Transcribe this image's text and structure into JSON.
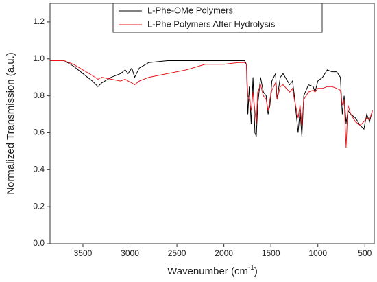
{
  "chart_data": {
    "type": "line",
    "xlabel_parts": [
      "Wavenumber (cm",
      "-1",
      ")"
    ],
    "ylabel": "Normalized Transmission (a.u.)",
    "x": [
      3850,
      3700,
      3600,
      3500,
      3400,
      3340,
      3300,
      3200,
      3100,
      3050,
      3020,
      2980,
      2950,
      2900,
      2800,
      2600,
      2400,
      2200,
      2000,
      1850,
      1780,
      1760,
      1745,
      1730,
      1710,
      1690,
      1670,
      1655,
      1640,
      1610,
      1580,
      1550,
      1530,
      1510,
      1490,
      1450,
      1435,
      1400,
      1370,
      1300,
      1270,
      1250,
      1230,
      1210,
      1190,
      1170,
      1150,
      1100,
      1050,
      1030,
      1000,
      950,
      900,
      850,
      800,
      760,
      740,
      720,
      700,
      680,
      650,
      600,
      550,
      510,
      480,
      450,
      420
    ],
    "series": [
      {
        "name": "L-Phe-OMe Polymers",
        "color": "#000000",
        "values": [
          0.99,
          0.99,
          0.96,
          0.92,
          0.88,
          0.85,
          0.87,
          0.9,
          0.92,
          0.94,
          0.92,
          0.95,
          0.9,
          0.95,
          0.98,
          0.99,
          0.99,
          0.99,
          0.99,
          0.99,
          0.99,
          0.97,
          0.7,
          0.85,
          0.65,
          0.9,
          0.6,
          0.58,
          0.75,
          0.9,
          0.82,
          0.8,
          0.7,
          0.75,
          0.88,
          0.92,
          0.78,
          0.9,
          0.92,
          0.86,
          0.88,
          0.8,
          0.7,
          0.6,
          0.72,
          0.58,
          0.8,
          0.86,
          0.85,
          0.82,
          0.88,
          0.9,
          0.94,
          0.93,
          0.93,
          0.9,
          0.7,
          0.8,
          0.65,
          0.72,
          0.7,
          0.68,
          0.64,
          0.62,
          0.7,
          0.66,
          0.72
        ]
      },
      {
        "name": "L-Phe Polymers After Hydrolysis",
        "color": "#e8141b",
        "values": [
          0.99,
          0.99,
          0.97,
          0.94,
          0.91,
          0.89,
          0.9,
          0.89,
          0.88,
          0.89,
          0.88,
          0.87,
          0.86,
          0.88,
          0.9,
          0.92,
          0.94,
          0.97,
          0.97,
          0.98,
          0.98,
          0.97,
          0.8,
          0.78,
          0.72,
          0.82,
          0.72,
          0.65,
          0.82,
          0.86,
          0.8,
          0.78,
          0.72,
          0.78,
          0.83,
          0.87,
          0.78,
          0.85,
          0.86,
          0.82,
          0.84,
          0.78,
          0.73,
          0.68,
          0.75,
          0.64,
          0.78,
          0.82,
          0.83,
          0.82,
          0.84,
          0.84,
          0.85,
          0.85,
          0.84,
          0.83,
          0.75,
          0.78,
          0.52,
          0.75,
          0.7,
          0.66,
          0.64,
          0.66,
          0.68,
          0.67,
          0.72
        ]
      }
    ],
    "xlim": [
      3850,
      400
    ],
    "xticks": [
      3500,
      3000,
      2500,
      2000,
      1500,
      1000,
      500
    ],
    "ylim": [
      0,
      1.3
    ],
    "yticks": [
      {
        "value": 0,
        "label": "0.0"
      },
      0.2,
      0.4,
      0.6,
      0.8,
      {
        "value": 1,
        "label": "1.0"
      },
      1.2
    ],
    "legend": "top"
  }
}
